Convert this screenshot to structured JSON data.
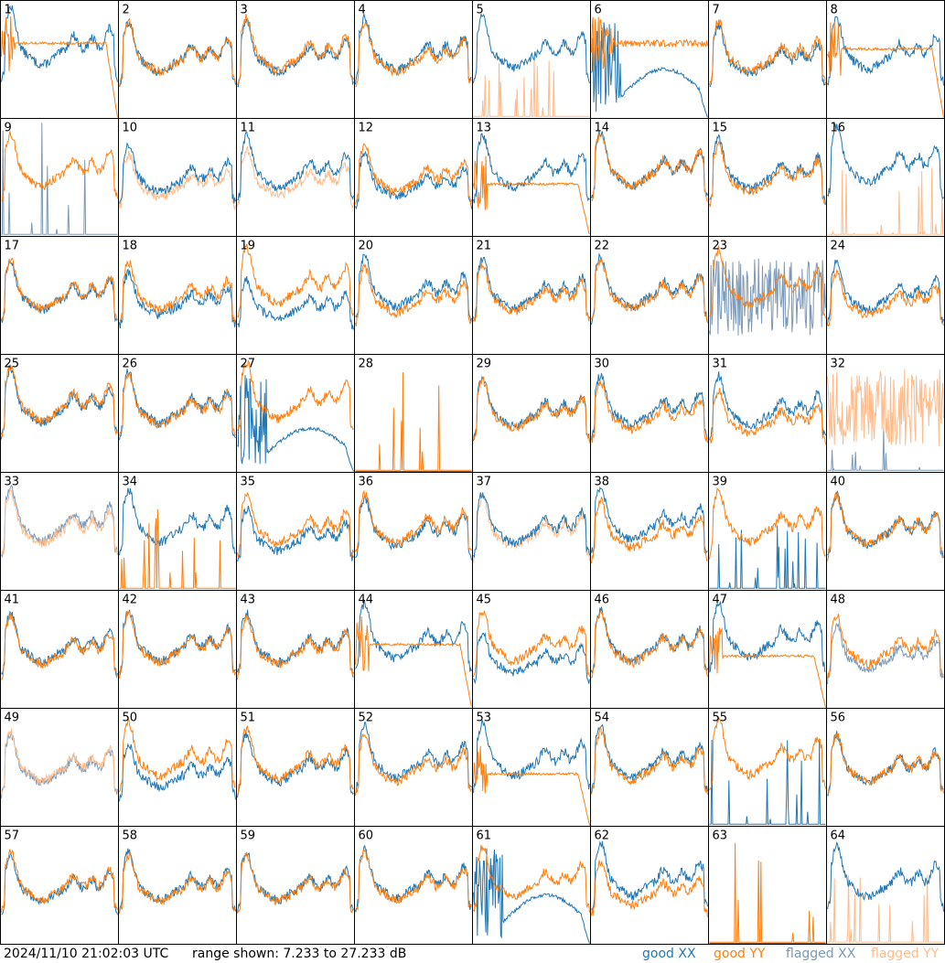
{
  "footer": {
    "timestamp": "2024/11/10 21:02:03 UTC",
    "range_text": "range shown: 7.233 to 27.233 dB"
  },
  "legend": {
    "good_xx": "good XX",
    "good_yy": "good YY",
    "flagged_xx": "flagged XX",
    "flagged_yy": "flagged YY"
  },
  "colors": {
    "good_xx": "#1f77b4",
    "good_yy": "#ff7f0e",
    "flagged_xx": "#7a99b8",
    "flagged_yy": "#ffbb8a"
  },
  "chart_data": {
    "type": "line",
    "description_of_panels": "64 small spectrum panels in an 8x8 grid, XX and YY traces per panel",
    "ylim": [
      7.233,
      27.233
    ],
    "y_unit": "dB",
    "grid": false,
    "legend_placement": "bottom-right",
    "panels": [
      {
        "id": "1",
        "xx": "good",
        "yy": "good",
        "xx_shape": "normal",
        "yy_shape": "rolloff",
        "xx_level": 0.75,
        "yy_level": 0.65
      },
      {
        "id": "2",
        "xx": "good",
        "yy": "good",
        "xx_shape": "normal",
        "yy_shape": "normal",
        "xx_level": 0.65,
        "yy_level": 0.65
      },
      {
        "id": "3",
        "xx": "good",
        "yy": "good",
        "xx_shape": "normal",
        "yy_shape": "normal",
        "xx_level": 0.65,
        "yy_level": 0.68
      },
      {
        "id": "4",
        "xx": "good",
        "yy": "good",
        "xx_shape": "normal",
        "yy_shape": "normal",
        "xx_level": 0.68,
        "yy_level": 0.64
      },
      {
        "id": "5",
        "xx": "good",
        "yy": "flagged",
        "xx_shape": "normal",
        "yy_shape": "spikes",
        "xx_level": 0.7,
        "yy_level": 0.2
      },
      {
        "id": "6",
        "xx": "good",
        "yy": "good",
        "xx_shape": "broken",
        "yy_shape": "noisyflat",
        "xx_level": 0.45,
        "yy_level": 0.65
      },
      {
        "id": "7",
        "xx": "good",
        "yy": "good",
        "xx_shape": "normal",
        "yy_shape": "normal",
        "xx_level": 0.62,
        "yy_level": 0.66
      },
      {
        "id": "8",
        "xx": "good",
        "yy": "good",
        "xx_shape": "normal",
        "yy_shape": "rolloff",
        "xx_level": 0.68,
        "yy_level": 0.6
      },
      {
        "id": "9",
        "xx": "flagged",
        "yy": "good",
        "xx_shape": "spikes",
        "yy_shape": "normal",
        "xx_level": 0.35,
        "yy_level": 0.7
      },
      {
        "id": "10",
        "xx": "good",
        "yy": "flagged",
        "xx_shape": "normal",
        "yy_shape": "normal",
        "xx_level": 0.62,
        "yy_level": 0.55
      },
      {
        "id": "11",
        "xx": "good",
        "yy": "flagged",
        "xx_shape": "normal",
        "yy_shape": "normal",
        "xx_level": 0.68,
        "yy_level": 0.58
      },
      {
        "id": "12",
        "xx": "good",
        "yy": "good",
        "xx_shape": "normal",
        "yy_shape": "normal",
        "xx_level": 0.55,
        "yy_level": 0.62
      },
      {
        "id": "13",
        "xx": "good",
        "yy": "good",
        "xx_shape": "normal",
        "yy_shape": "rolloff",
        "xx_level": 0.68,
        "yy_level": 0.45
      },
      {
        "id": "14",
        "xx": "good",
        "yy": "good",
        "xx_shape": "normal",
        "yy_shape": "normal",
        "xx_level": 0.7,
        "yy_level": 0.7
      },
      {
        "id": "15",
        "xx": "good",
        "yy": "good",
        "xx_shape": "normal",
        "yy_shape": "normal",
        "xx_level": 0.66,
        "yy_level": 0.62
      },
      {
        "id": "16",
        "xx": "good",
        "yy": "flagged",
        "xx_shape": "normal",
        "yy_shape": "spikes",
        "xx_level": 0.75,
        "yy_level": 0.2
      },
      {
        "id": "17",
        "xx": "good",
        "yy": "good",
        "xx_shape": "normal",
        "yy_shape": "normal",
        "xx_level": 0.62,
        "yy_level": 0.64
      },
      {
        "id": "18",
        "xx": "good",
        "yy": "good",
        "xx_shape": "normal",
        "yy_shape": "normal",
        "xx_level": 0.55,
        "yy_level": 0.62
      },
      {
        "id": "19",
        "xx": "good",
        "yy": "good",
        "xx_shape": "normal",
        "yy_shape": "normal",
        "xx_level": 0.5,
        "yy_level": 0.72
      },
      {
        "id": "20",
        "xx": "good",
        "yy": "good",
        "xx_shape": "normal",
        "yy_shape": "normal",
        "xx_level": 0.66,
        "yy_level": 0.58
      },
      {
        "id": "21",
        "xx": "good",
        "yy": "good",
        "xx_shape": "normal",
        "yy_shape": "normal",
        "xx_level": 0.64,
        "yy_level": 0.6
      },
      {
        "id": "22",
        "xx": "good",
        "yy": "good",
        "xx_shape": "normal",
        "yy_shape": "normal",
        "xx_level": 0.66,
        "yy_level": 0.64
      },
      {
        "id": "23",
        "xx": "flagged",
        "yy": "good",
        "xx_shape": "noisy",
        "yy_shape": "normal",
        "xx_level": 0.5,
        "yy_level": 0.7
      },
      {
        "id": "24",
        "xx": "good",
        "yy": "good",
        "xx_shape": "normal",
        "yy_shape": "normal",
        "xx_level": 0.62,
        "yy_level": 0.55
      },
      {
        "id": "25",
        "xx": "good",
        "yy": "good",
        "xx_shape": "normal",
        "yy_shape": "normal",
        "xx_level": 0.7,
        "yy_level": 0.72
      },
      {
        "id": "26",
        "xx": "good",
        "yy": "good",
        "xx_shape": "normal",
        "yy_shape": "normal",
        "xx_level": 0.68,
        "yy_level": 0.66
      },
      {
        "id": "27",
        "xx": "good",
        "yy": "good",
        "xx_shape": "broken",
        "yy_shape": "normal",
        "xx_level": 0.4,
        "yy_level": 0.75
      },
      {
        "id": "28",
        "xx": "good",
        "yy": "good",
        "xx_shape": "flat",
        "yy_shape": "spikes",
        "xx_level": 0.0,
        "yy_level": 0.3
      },
      {
        "id": "29",
        "xx": "good",
        "yy": "good",
        "xx_shape": "normal",
        "yy_shape": "normal",
        "xx_level": 0.64,
        "yy_level": 0.62
      },
      {
        "id": "30",
        "xx": "good",
        "yy": "good",
        "xx_shape": "normal",
        "yy_shape": "normal",
        "xx_level": 0.66,
        "yy_level": 0.6
      },
      {
        "id": "31",
        "xx": "good",
        "yy": "good",
        "xx_shape": "normal",
        "yy_shape": "normal",
        "xx_level": 0.65,
        "yy_level": 0.55
      },
      {
        "id": "32",
        "xx": "flagged",
        "yy": "flagged",
        "xx_shape": "spikes",
        "yy_shape": "noisy",
        "xx_level": 0.15,
        "yy_level": 0.55
      },
      {
        "id": "33",
        "xx": "flagged",
        "yy": "flagged",
        "xx_shape": "normal",
        "yy_shape": "normal",
        "xx_level": 0.7,
        "yy_level": 0.66
      },
      {
        "id": "34",
        "xx": "good",
        "yy": "good",
        "xx_shape": "normal",
        "yy_shape": "spikes",
        "xx_level": 0.68,
        "yy_level": 0.25
      },
      {
        "id": "35",
        "xx": "good",
        "yy": "good",
        "xx_shape": "normal",
        "yy_shape": "normal",
        "xx_level": 0.55,
        "yy_level": 0.65
      },
      {
        "id": "36",
        "xx": "good",
        "yy": "good",
        "xx_shape": "normal",
        "yy_shape": "normal",
        "xx_level": 0.62,
        "yy_level": 0.66
      },
      {
        "id": "37",
        "xx": "good",
        "yy": "flagged",
        "xx_shape": "normal",
        "yy_shape": "normal",
        "xx_level": 0.66,
        "yy_level": 0.62
      },
      {
        "id": "38",
        "xx": "good",
        "yy": "good",
        "xx_shape": "normal",
        "yy_shape": "normal",
        "xx_level": 0.7,
        "yy_level": 0.6
      },
      {
        "id": "39",
        "xx": "good",
        "yy": "good",
        "xx_shape": "spikes",
        "yy_shape": "normal",
        "xx_level": 0.2,
        "yy_level": 0.68
      },
      {
        "id": "40",
        "xx": "good",
        "yy": "good",
        "xx_shape": "normal",
        "yy_shape": "normal",
        "xx_level": 0.64,
        "yy_level": 0.64
      },
      {
        "id": "41",
        "xx": "good",
        "yy": "good",
        "xx_shape": "normal",
        "yy_shape": "normal",
        "xx_level": 0.64,
        "yy_level": 0.62
      },
      {
        "id": "42",
        "xx": "good",
        "yy": "good",
        "xx_shape": "normal",
        "yy_shape": "normal",
        "xx_level": 0.66,
        "yy_level": 0.64
      },
      {
        "id": "43",
        "xx": "good",
        "yy": "good",
        "xx_shape": "normal",
        "yy_shape": "normal",
        "xx_level": 0.64,
        "yy_level": 0.62
      },
      {
        "id": "44",
        "xx": "good",
        "yy": "good",
        "xx_shape": "normal",
        "yy_shape": "rolloff",
        "xx_level": 0.7,
        "yy_level": 0.55
      },
      {
        "id": "45",
        "xx": "good",
        "yy": "good",
        "xx_shape": "normal",
        "yy_shape": "normal",
        "xx_level": 0.5,
        "yy_level": 0.66
      },
      {
        "id": "46",
        "xx": "good",
        "yy": "good",
        "xx_shape": "normal",
        "yy_shape": "normal",
        "xx_level": 0.66,
        "yy_level": 0.64
      },
      {
        "id": "47",
        "xx": "good",
        "yy": "good",
        "xx_shape": "normal",
        "yy_shape": "rolloff",
        "xx_level": 0.72,
        "yy_level": 0.45
      },
      {
        "id": "48",
        "xx": "flagged",
        "yy": "good",
        "xx_shape": "normal",
        "yy_shape": "normal",
        "xx_level": 0.55,
        "yy_level": 0.62
      },
      {
        "id": "49",
        "xx": "flagged",
        "yy": "flagged",
        "xx_shape": "normal",
        "yy_shape": "normal",
        "xx_level": 0.62,
        "yy_level": 0.64
      },
      {
        "id": "50",
        "xx": "good",
        "yy": "good",
        "xx_shape": "normal",
        "yy_shape": "normal",
        "xx_level": 0.55,
        "yy_level": 0.7
      },
      {
        "id": "51",
        "xx": "good",
        "yy": "good",
        "xx_shape": "normal",
        "yy_shape": "normal",
        "xx_level": 0.62,
        "yy_level": 0.66
      },
      {
        "id": "52",
        "xx": "good",
        "yy": "good",
        "xx_shape": "normal",
        "yy_shape": "normal",
        "xx_level": 0.68,
        "yy_level": 0.62
      },
      {
        "id": "53",
        "xx": "good",
        "yy": "good",
        "xx_shape": "normal",
        "yy_shape": "rolloff",
        "xx_level": 0.7,
        "yy_level": 0.45
      },
      {
        "id": "54",
        "xx": "good",
        "yy": "good",
        "xx_shape": "normal",
        "yy_shape": "normal",
        "xx_level": 0.68,
        "yy_level": 0.64
      },
      {
        "id": "55",
        "xx": "good",
        "yy": "good",
        "xx_shape": "spikes",
        "yy_shape": "normal",
        "xx_level": 0.25,
        "yy_level": 0.72
      },
      {
        "id": "56",
        "xx": "good",
        "yy": "good",
        "xx_shape": "normal",
        "yy_shape": "normal",
        "xx_level": 0.62,
        "yy_level": 0.62
      },
      {
        "id": "57",
        "xx": "good",
        "yy": "good",
        "xx_shape": "normal",
        "yy_shape": "normal",
        "xx_level": 0.6,
        "yy_level": 0.62
      },
      {
        "id": "58",
        "xx": "good",
        "yy": "good",
        "xx_shape": "normal",
        "yy_shape": "normal",
        "xx_level": 0.62,
        "yy_level": 0.6
      },
      {
        "id": "59",
        "xx": "good",
        "yy": "good",
        "xx_shape": "normal",
        "yy_shape": "normal",
        "xx_level": 0.62,
        "yy_level": 0.6
      },
      {
        "id": "60",
        "xx": "good",
        "yy": "good",
        "xx_shape": "normal",
        "yy_shape": "normal",
        "xx_level": 0.64,
        "yy_level": 0.62
      },
      {
        "id": "61",
        "xx": "good",
        "yy": "good",
        "xx_shape": "broken",
        "yy_shape": "normal",
        "xx_level": 0.45,
        "yy_level": 0.66
      },
      {
        "id": "62",
        "xx": "good",
        "yy": "good",
        "xx_shape": "normal",
        "yy_shape": "normal",
        "xx_level": 0.68,
        "yy_level": 0.55
      },
      {
        "id": "63",
        "xx": "good",
        "yy": "good",
        "xx_shape": "flat",
        "yy_shape": "spikes",
        "xx_level": 0.0,
        "yy_level": 0.3
      },
      {
        "id": "64",
        "xx": "good",
        "yy": "flagged",
        "xx_shape": "normal",
        "yy_shape": "spikes",
        "xx_level": 0.66,
        "yy_level": 0.2
      }
    ]
  }
}
